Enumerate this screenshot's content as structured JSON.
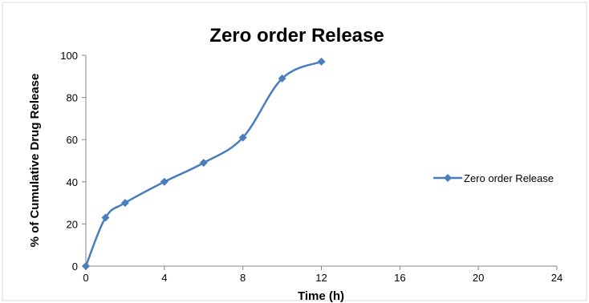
{
  "chart_data": {
    "type": "line",
    "title": "Zero order Release",
    "xlabel": "Time (h)",
    "ylabel": "% of Cumulative Drug Release",
    "xlim": [
      0,
      24
    ],
    "ylim": [
      0,
      100
    ],
    "xticks": [
      0,
      4,
      8,
      12,
      16,
      20,
      24
    ],
    "yticks": [
      0,
      20,
      40,
      60,
      80,
      100
    ],
    "grid": false,
    "legend_position": "right",
    "series": [
      {
        "name": "Zero order Release",
        "color": "#4a7ebb",
        "marker": "diamond",
        "smooth": true,
        "x": [
          0,
          1,
          2,
          4,
          6,
          8,
          10,
          12
        ],
        "y": [
          0,
          23,
          30,
          40,
          49,
          61,
          89,
          97
        ]
      }
    ]
  }
}
